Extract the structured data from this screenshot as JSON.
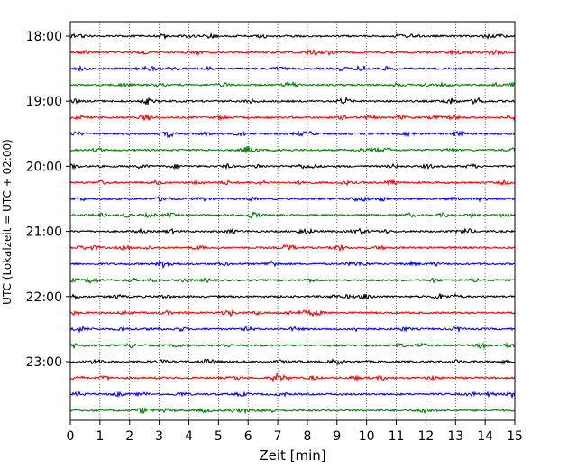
{
  "chart_data": {
    "type": "line",
    "xlabel": "Zeit  [min]",
    "ylabel": "UTC (Lokalzeit = UTC + 02:00)",
    "xlim": [
      0,
      15
    ],
    "x_ticks": [
      "0",
      "1",
      "2",
      "3",
      "4",
      "5",
      "6",
      "7",
      "8",
      "9",
      "10",
      "11",
      "12",
      "13",
      "14",
      "15"
    ],
    "y_tick_labels": [
      "18:00",
      "19:00",
      "20:00",
      "21:00",
      "22:00",
      "23:00"
    ],
    "y_tick_rows": [
      0,
      4,
      8,
      12,
      16,
      20
    ],
    "rows": 24,
    "row_colors": [
      "#000000",
      "#ff0000",
      "#0000ff",
      "#008000"
    ],
    "vertical_grid": true,
    "grid_style": "dotted",
    "trace_noise_amplitude": 0.25
  }
}
